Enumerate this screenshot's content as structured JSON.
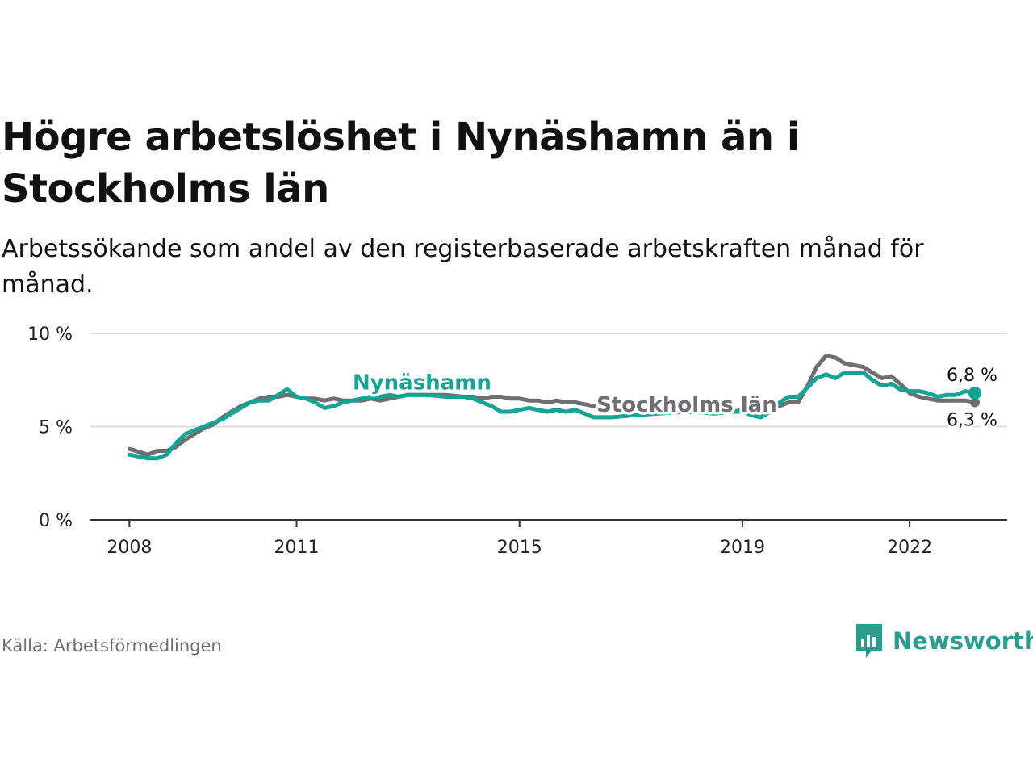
{
  "title": "Högre arbetslöshet i Nynäshamn än i Stockholms län",
  "subtitle": "Arbetssökande som andel av den registerbaserade arbetskraften månad för månad.",
  "source": "Källa: Arbetsförmedlingen",
  "brand": "Newsworthy",
  "colors": {
    "nynashamn": "#16a393",
    "stockholm": "#6f6f72",
    "grid": "#dddddd",
    "axis": "#333333"
  },
  "chart_data": {
    "type": "line",
    "x_ticks": [
      {
        "value": 2008,
        "label": "2008"
      },
      {
        "value": 2011,
        "label": "2011"
      },
      {
        "value": 2015,
        "label": "2015"
      },
      {
        "value": 2019,
        "label": "2019"
      },
      {
        "value": 2022,
        "label": "2022"
      }
    ],
    "y_ticks": [
      {
        "value": 0,
        "label": "0 %"
      },
      {
        "value": 5,
        "label": "5 %"
      },
      {
        "value": 10,
        "label": "10 %"
      }
    ],
    "xlim": [
      2007.3,
      2023.75
    ],
    "ylim": [
      0,
      10
    ],
    "series": [
      {
        "name": "Stockholms län",
        "label": "Stockholms län",
        "end_label": "6,3 %",
        "points": [
          [
            2008.0,
            3.8
          ],
          [
            2008.17,
            3.65
          ],
          [
            2008.33,
            3.5
          ],
          [
            2008.5,
            3.7
          ],
          [
            2008.67,
            3.7
          ],
          [
            2008.83,
            3.9
          ],
          [
            2009.0,
            4.3
          ],
          [
            2009.17,
            4.6
          ],
          [
            2009.33,
            4.9
          ],
          [
            2009.5,
            5.1
          ],
          [
            2009.67,
            5.5
          ],
          [
            2009.83,
            5.8
          ],
          [
            2010.0,
            6.1
          ],
          [
            2010.17,
            6.3
          ],
          [
            2010.33,
            6.5
          ],
          [
            2010.5,
            6.6
          ],
          [
            2010.67,
            6.6
          ],
          [
            2010.83,
            6.7
          ],
          [
            2011.0,
            6.6
          ],
          [
            2011.17,
            6.5
          ],
          [
            2011.33,
            6.5
          ],
          [
            2011.5,
            6.4
          ],
          [
            2011.67,
            6.5
          ],
          [
            2011.83,
            6.4
          ],
          [
            2012.0,
            6.4
          ],
          [
            2012.17,
            6.4
          ],
          [
            2012.33,
            6.5
          ],
          [
            2012.5,
            6.4
          ],
          [
            2012.67,
            6.5
          ],
          [
            2012.83,
            6.6
          ],
          [
            2013.0,
            6.7
          ],
          [
            2013.33,
            6.7
          ],
          [
            2013.67,
            6.7
          ],
          [
            2014.0,
            6.6
          ],
          [
            2014.17,
            6.6
          ],
          [
            2014.33,
            6.5
          ],
          [
            2014.5,
            6.6
          ],
          [
            2014.67,
            6.6
          ],
          [
            2014.83,
            6.5
          ],
          [
            2015.0,
            6.5
          ],
          [
            2015.17,
            6.4
          ],
          [
            2015.33,
            6.4
          ],
          [
            2015.5,
            6.3
          ],
          [
            2015.67,
            6.4
          ],
          [
            2015.83,
            6.3
          ],
          [
            2016.0,
            6.3
          ],
          [
            2016.17,
            6.2
          ],
          [
            2016.33,
            6.1
          ],
          [
            2016.5,
            6.1
          ],
          [
            2016.67,
            6.0
          ],
          [
            2017.0,
            6.0
          ],
          [
            2017.5,
            5.9
          ],
          [
            2018.0,
            5.8
          ],
          [
            2018.5,
            5.8
          ],
          [
            2018.83,
            5.8
          ],
          [
            2019.0,
            5.9
          ],
          [
            2019.17,
            5.8
          ],
          [
            2019.33,
            5.8
          ],
          [
            2019.5,
            6.0
          ],
          [
            2019.67,
            6.1
          ],
          [
            2019.83,
            6.3
          ],
          [
            2020.0,
            6.3
          ],
          [
            2020.17,
            7.2
          ],
          [
            2020.33,
            8.2
          ],
          [
            2020.5,
            8.8
          ],
          [
            2020.67,
            8.7
          ],
          [
            2020.83,
            8.4
          ],
          [
            2021.0,
            8.3
          ],
          [
            2021.17,
            8.2
          ],
          [
            2021.33,
            7.9
          ],
          [
            2021.5,
            7.6
          ],
          [
            2021.67,
            7.7
          ],
          [
            2021.83,
            7.3
          ],
          [
            2022.0,
            6.8
          ],
          [
            2022.17,
            6.6
          ],
          [
            2022.33,
            6.5
          ],
          [
            2022.5,
            6.4
          ],
          [
            2022.67,
            6.4
          ],
          [
            2022.83,
            6.4
          ],
          [
            2023.0,
            6.4
          ],
          [
            2023.17,
            6.3
          ]
        ]
      },
      {
        "name": "Nynäshamn",
        "label": "Nynäshamn",
        "end_label": "6,8 %",
        "points": [
          [
            2008.0,
            3.5
          ],
          [
            2008.17,
            3.4
          ],
          [
            2008.33,
            3.3
          ],
          [
            2008.5,
            3.3
          ],
          [
            2008.67,
            3.5
          ],
          [
            2008.83,
            4.1
          ],
          [
            2009.0,
            4.6
          ],
          [
            2009.17,
            4.8
          ],
          [
            2009.33,
            5.0
          ],
          [
            2009.5,
            5.2
          ],
          [
            2009.67,
            5.4
          ],
          [
            2009.83,
            5.7
          ],
          [
            2010.0,
            6.0
          ],
          [
            2010.17,
            6.3
          ],
          [
            2010.33,
            6.4
          ],
          [
            2010.5,
            6.4
          ],
          [
            2010.67,
            6.7
          ],
          [
            2010.83,
            7.0
          ],
          [
            2011.0,
            6.6
          ],
          [
            2011.17,
            6.5
          ],
          [
            2011.33,
            6.3
          ],
          [
            2011.5,
            6.0
          ],
          [
            2011.67,
            6.1
          ],
          [
            2011.83,
            6.3
          ],
          [
            2012.0,
            6.4
          ],
          [
            2012.17,
            6.5
          ],
          [
            2012.33,
            6.6
          ],
          [
            2012.5,
            6.6
          ],
          [
            2012.67,
            6.7
          ],
          [
            2012.83,
            6.6
          ],
          [
            2013.0,
            6.7
          ],
          [
            2013.33,
            6.7
          ],
          [
            2013.67,
            6.6
          ],
          [
            2014.0,
            6.6
          ],
          [
            2014.17,
            6.5
          ],
          [
            2014.33,
            6.3
          ],
          [
            2014.5,
            6.1
          ],
          [
            2014.67,
            5.8
          ],
          [
            2014.83,
            5.8
          ],
          [
            2015.0,
            5.9
          ],
          [
            2015.17,
            6.0
          ],
          [
            2015.33,
            5.9
          ],
          [
            2015.5,
            5.8
          ],
          [
            2015.67,
            5.9
          ],
          [
            2015.83,
            5.8
          ],
          [
            2016.0,
            5.9
          ],
          [
            2016.17,
            5.7
          ],
          [
            2016.33,
            5.5
          ],
          [
            2016.5,
            5.5
          ],
          [
            2016.67,
            5.5
          ],
          [
            2017.0,
            5.6
          ],
          [
            2017.5,
            5.7
          ],
          [
            2018.0,
            5.8
          ],
          [
            2018.5,
            5.7
          ],
          [
            2018.83,
            5.8
          ],
          [
            2019.0,
            5.8
          ],
          [
            2019.17,
            5.6
          ],
          [
            2019.33,
            5.5
          ],
          [
            2019.5,
            5.8
          ],
          [
            2019.67,
            6.3
          ],
          [
            2019.83,
            6.6
          ],
          [
            2020.0,
            6.6
          ],
          [
            2020.17,
            7.1
          ],
          [
            2020.33,
            7.6
          ],
          [
            2020.5,
            7.8
          ],
          [
            2020.67,
            7.6
          ],
          [
            2020.83,
            7.9
          ],
          [
            2021.0,
            7.9
          ],
          [
            2021.17,
            7.9
          ],
          [
            2021.33,
            7.5
          ],
          [
            2021.5,
            7.2
          ],
          [
            2021.67,
            7.3
          ],
          [
            2021.83,
            7.0
          ],
          [
            2022.0,
            6.9
          ],
          [
            2022.17,
            6.9
          ],
          [
            2022.33,
            6.8
          ],
          [
            2022.5,
            6.6
          ],
          [
            2022.67,
            6.7
          ],
          [
            2022.83,
            6.7
          ],
          [
            2023.0,
            6.9
          ],
          [
            2023.17,
            6.8
          ]
        ]
      }
    ]
  }
}
